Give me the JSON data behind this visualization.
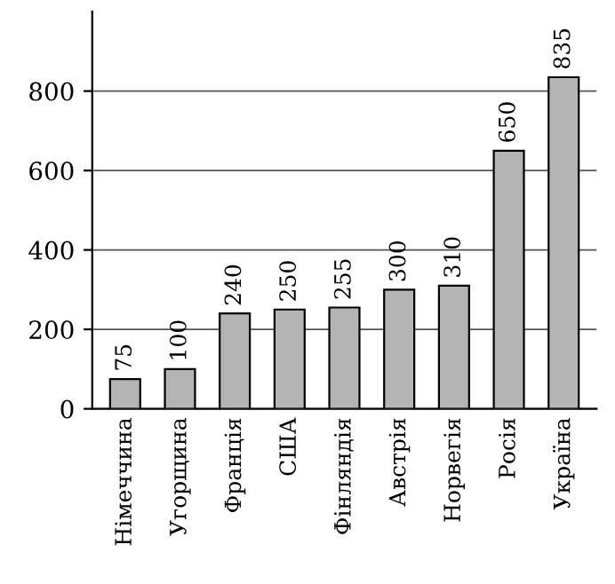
{
  "chart_data": {
    "type": "bar",
    "categories": [
      "Німеччина",
      "Угорщина",
      "Франція",
      "США",
      "Фінляндія",
      "Австрія",
      "Норвегія",
      "Росія",
      "Україна"
    ],
    "values": [
      75,
      100,
      240,
      250,
      255,
      300,
      310,
      650,
      835
    ],
    "color": "#b4b4b4",
    "ylim": [
      0,
      1000
    ],
    "yticks": [
      0,
      200,
      400,
      600,
      800
    ],
    "grid": "y",
    "data_labels": true
  }
}
